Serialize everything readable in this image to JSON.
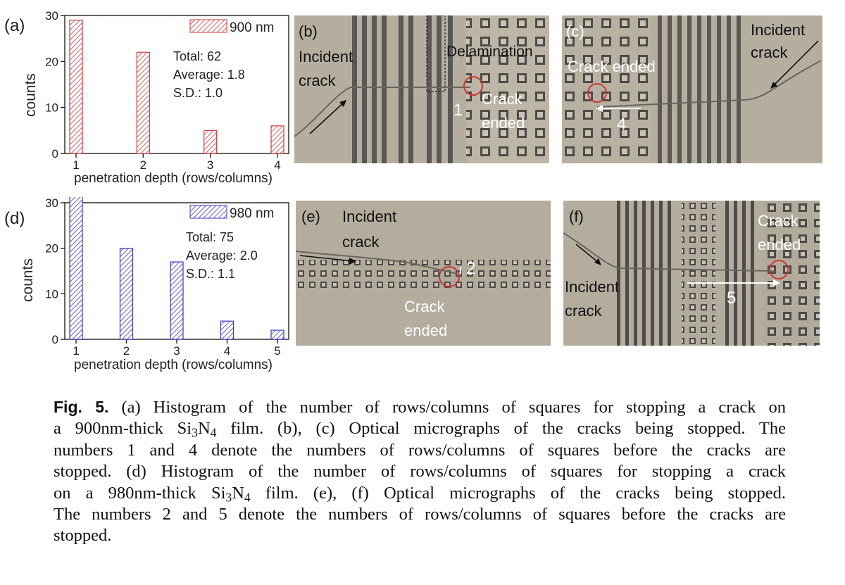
{
  "colors": {
    "red": "#d23a3a",
    "blue": "#3a3ac8",
    "micro_bg": "#b4ae9e",
    "micro_dark": "#4a4a4a",
    "red_circle": "#cc3333"
  },
  "panel_a": {
    "label": "(a)",
    "chart_data": {
      "type": "bar",
      "categories": [
        "1",
        "2",
        "3",
        "4"
      ],
      "values": [
        29,
        22,
        5,
        6
      ],
      "xlabel": "penetration depth (rows/columns)",
      "ylabel": "counts",
      "ylim": [
        0,
        30
      ],
      "yticks": [
        0,
        10,
        20,
        30
      ],
      "legend": "900 nm",
      "stats": [
        "Total: 62",
        "Average: 1.8",
        "S.D.: 1.0"
      ]
    }
  },
  "panel_d": {
    "label": "(d)",
    "chart_data": {
      "type": "bar",
      "categories": [
        "1",
        "2",
        "3",
        "4",
        "5"
      ],
      "values": [
        32,
        20,
        17,
        4,
        2
      ],
      "xlabel": "penetration depth (rows/columns)",
      "ylabel": "counts",
      "ylim": [
        0,
        30
      ],
      "yticks": [
        0,
        10,
        20,
        30
      ],
      "legend": "980 nm",
      "stats": [
        "Total: 75",
        "Average: 2.0",
        "S.D.: 1.1"
      ]
    }
  },
  "panel_b": {
    "label": "(b)",
    "incident": [
      "Incident",
      "crack"
    ],
    "delamination": "Delamination",
    "ended": [
      "Crack",
      "ended"
    ],
    "number": "1"
  },
  "panel_c": {
    "label": "(c)",
    "ended": "Crack ended",
    "incident": [
      "Incident",
      "crack"
    ],
    "number": "4"
  },
  "panel_e": {
    "label": "(e)",
    "incident": [
      "Incident",
      "crack"
    ],
    "ended": [
      "Crack",
      "ended"
    ],
    "number": "2"
  },
  "panel_f": {
    "label": "(f)",
    "incident": [
      "Incident",
      "crack"
    ],
    "ended": [
      "Crack",
      "ended"
    ],
    "number": "5"
  },
  "caption": {
    "label": "Fig. 5.",
    "l1": "(a) Histogram of the number of rows/columns of squares for stopping a crack on",
    "l2a": "a 900nm-thick Si",
    "l2b": "3",
    "l2c": "N",
    "l2d": "4",
    "l2e": " film. (b), (c) Optical micrographs of the cracks being stopped. The",
    "l3": "numbers 1 and 4 denote the numbers of rows/columns of squares before the cracks are",
    "l4": "stopped. (d) Histogram of the number of rows/columns of squares for stopping a crack",
    "l5a": "on a 980nm-thick Si",
    "l5b": "3",
    "l5c": "N",
    "l5d": "4",
    "l5e": " film. (e), (f) Optical micrographs of the cracks being stopped.",
    "l6": "The numbers 2 and 5 denote the numbers of rows/columns of squares before the cracks are",
    "l7": "stopped."
  }
}
